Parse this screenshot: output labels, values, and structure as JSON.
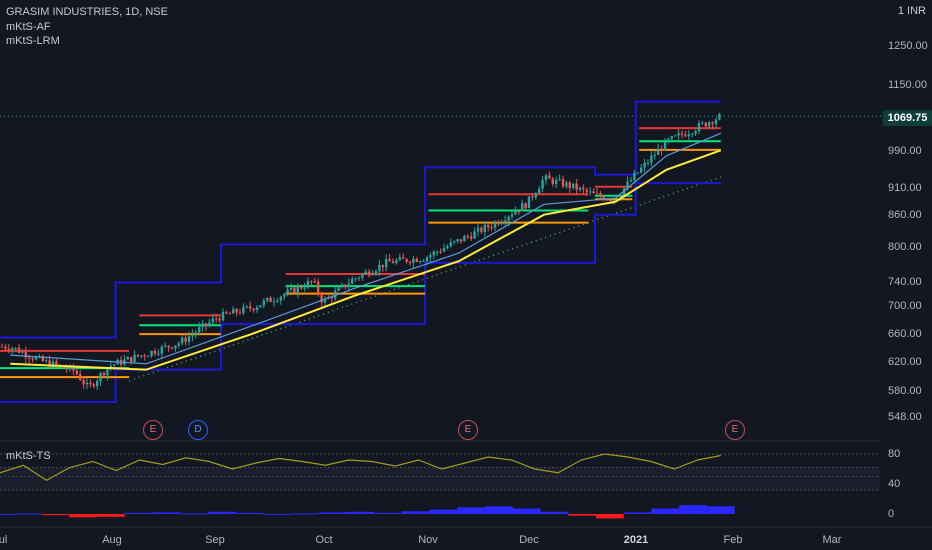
{
  "header": {
    "symbol_title": "GRASIM INDUSTRIES, 1D, NSE",
    "indicator_1": "mKtS-AF",
    "indicator_2": "mKtS-LRM",
    "currency": "INR",
    "currency_prefix": "1"
  },
  "price_axis": {
    "ticks": [
      "1250.00",
      "1150.00",
      "990.00",
      "910.00",
      "860.00",
      "800.00",
      "740.00",
      "700.00",
      "660.00",
      "620.00",
      "580.00",
      "548.00"
    ],
    "current_price": "1069.75"
  },
  "time_axis": {
    "labels": [
      "ul",
      "Aug",
      "Sep",
      "Oct",
      "Nov",
      "Dec",
      "2021",
      "Feb",
      "Mar"
    ],
    "bold_label": "2021"
  },
  "events": [
    {
      "letter": "E",
      "kind": "earnings"
    },
    {
      "letter": "D",
      "kind": "dividend"
    },
    {
      "letter": "E",
      "kind": "earnings"
    },
    {
      "letter": "E",
      "kind": "earnings"
    }
  ],
  "oscillator": {
    "title": "mKtS-TS",
    "ticks": [
      "80",
      "40",
      "0"
    ]
  },
  "colors": {
    "background": "#131722",
    "up_candle": "#26a69a",
    "down_candle": "#ef5350",
    "channel": "#1a1ad6",
    "resistance": "#e53935",
    "support_green": "#00e676",
    "support_orange": "#ff9800",
    "ma_yellow": "#ffeb3b",
    "ma_blue": "#5b9bd5",
    "trend_dots": "#4caf50",
    "oscillator_line": "#9e9d24",
    "histogram_blue": "#2929ff",
    "histogram_red": "#ff1a1a"
  },
  "chart_data": {
    "type": "candlestick",
    "symbol": "GRASIM INDUSTRIES",
    "interval": "1D",
    "exchange": "NSE",
    "y_axis_scale": "log",
    "ylim": [
      540,
      1300
    ],
    "last_price": 1069.75,
    "price_path": [
      {
        "x": "2020-07-01",
        "close": 642
      },
      {
        "x": "2020-07-10",
        "close": 622
      },
      {
        "x": "2020-07-20",
        "close": 608
      },
      {
        "x": "2020-07-24",
        "close": 585
      },
      {
        "x": "2020-07-30",
        "close": 615
      },
      {
        "x": "2020-08-10",
        "close": 632
      },
      {
        "x": "2020-08-20",
        "close": 648
      },
      {
        "x": "2020-08-31",
        "close": 685
      },
      {
        "x": "2020-09-10",
        "close": 700
      },
      {
        "x": "2020-09-20",
        "close": 722
      },
      {
        "x": "2020-09-28",
        "close": 742
      },
      {
        "x": "2020-10-01",
        "close": 708
      },
      {
        "x": "2020-10-10",
        "close": 746
      },
      {
        "x": "2020-10-20",
        "close": 774
      },
      {
        "x": "2020-10-31",
        "close": 782
      },
      {
        "x": "2020-11-10",
        "close": 812
      },
      {
        "x": "2020-11-20",
        "close": 842
      },
      {
        "x": "2020-11-30",
        "close": 882
      },
      {
        "x": "2020-12-05",
        "close": 932
      },
      {
        "x": "2020-12-12",
        "close": 918
      },
      {
        "x": "2020-12-20",
        "close": 898
      },
      {
        "x": "2020-12-26",
        "close": 890
      },
      {
        "x": "2021-01-01",
        "close": 940
      },
      {
        "x": "2021-01-10",
        "close": 1010
      },
      {
        "x": "2021-01-18",
        "close": 1040
      },
      {
        "x": "2021-01-26",
        "close": 1069.75
      }
    ],
    "ma_fast": [
      {
        "x": "2020-07-01",
        "y": 630
      },
      {
        "x": "2020-08-10",
        "y": 618
      },
      {
        "x": "2020-09-10",
        "y": 672
      },
      {
        "x": "2020-10-10",
        "y": 730
      },
      {
        "x": "2020-11-10",
        "y": 790
      },
      {
        "x": "2020-12-05",
        "y": 880
      },
      {
        "x": "2020-12-26",
        "y": 892
      },
      {
        "x": "2021-01-10",
        "y": 980
      },
      {
        "x": "2021-01-26",
        "y": 1030
      }
    ],
    "ma_slow": [
      {
        "x": "2020-07-01",
        "y": 618
      },
      {
        "x": "2020-08-10",
        "y": 610
      },
      {
        "x": "2020-09-10",
        "y": 660
      },
      {
        "x": "2020-10-10",
        "y": 718
      },
      {
        "x": "2020-11-10",
        "y": 776
      },
      {
        "x": "2020-12-05",
        "y": 860
      },
      {
        "x": "2020-12-26",
        "y": 885
      },
      {
        "x": "2021-01-10",
        "y": 950
      },
      {
        "x": "2021-01-26",
        "y": 992
      }
    ],
    "trend_line": [
      {
        "x": "2020-08-05",
        "y": 595
      },
      {
        "x": "2021-01-26",
        "y": 935
      }
    ],
    "channels": [
      {
        "start": "2020-06-28",
        "end": "2020-08-01",
        "upper": 655,
        "lower": 568
      },
      {
        "start": "2020-08-01",
        "end": "2020-09-01",
        "upper": 740,
        "lower": 610
      },
      {
        "start": "2020-09-01",
        "end": "2020-10-31",
        "upper": 805,
        "lower": 675
      },
      {
        "start": "2020-10-31",
        "end": "2020-12-20",
        "upper": 955,
        "lower": 773
      },
      {
        "start": "2020-12-20",
        "end": "2021-01-01",
        "upper": 940,
        "lower": 860
      },
      {
        "start": "2021-01-01",
        "end": "2021-01-26",
        "upper": 1105,
        "lower": 922
      }
    ],
    "levels": [
      {
        "start": "2020-06-28",
        "end": "2020-08-05",
        "red": 636,
        "green": 612,
        "orange": 600
      },
      {
        "start": "2020-08-08",
        "end": "2020-09-01",
        "red": 688,
        "green": 673,
        "orange": 660
      },
      {
        "start": "2020-09-20",
        "end": "2020-10-31",
        "red": 754,
        "green": 734,
        "orange": 722
      },
      {
        "start": "2020-11-01",
        "end": "2020-12-18",
        "red": 900,
        "green": 868,
        "orange": 845
      },
      {
        "start": "2020-12-20",
        "end": "2020-12-31",
        "red": 915,
        "green": 897,
        "orange": 890
      },
      {
        "start": "2021-01-02",
        "end": "2021-01-26",
        "red": 1042,
        "green": 1012,
        "orange": 993
      }
    ],
    "oscillator_series": {
      "name": "mKtS-TS",
      "ylim": [
        0,
        100
      ],
      "reference_lines": [
        80,
        62,
        50,
        32
      ],
      "values": [
        55,
        65,
        45,
        62,
        70,
        58,
        72,
        66,
        75,
        70,
        60,
        68,
        74,
        70,
        65,
        72,
        70,
        64,
        72,
        60,
        68,
        76,
        72,
        60,
        55,
        72,
        80,
        76,
        70,
        60,
        72,
        78
      ]
    },
    "histogram": [
      0,
      1,
      -2,
      -6,
      -5,
      2,
      3,
      1,
      4,
      2,
      0,
      1,
      3,
      4,
      2,
      5,
      8,
      12,
      14,
      10,
      4,
      -3,
      -8,
      3,
      10,
      16,
      14
    ]
  }
}
